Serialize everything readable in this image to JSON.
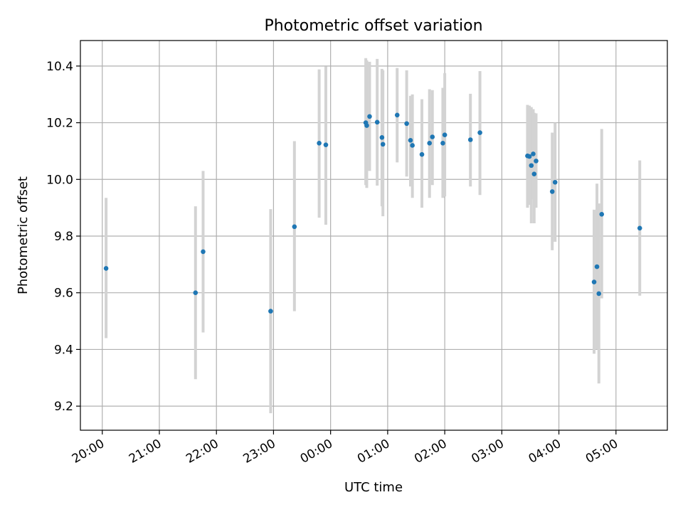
{
  "chart_data": {
    "type": "scatter",
    "title": "Photometric offset variation",
    "xlabel": "UTC time",
    "ylabel": "Photometric offset",
    "x_tick_labels": [
      "20:00",
      "21:00",
      "22:00",
      "23:00",
      "00:00",
      "01:00",
      "02:00",
      "03:00",
      "04:00",
      "05:00"
    ],
    "y_tick_labels": [
      "9.2",
      "9.4",
      "9.6",
      "9.8",
      "10.0",
      "10.2",
      "10.4"
    ],
    "y_ticks": [
      9.2,
      9.4,
      9.6,
      9.8,
      10.0,
      10.2,
      10.4
    ],
    "xlim": [
      "19:37",
      "05:54"
    ],
    "ylim": [
      9.115,
      10.49
    ],
    "grid": true,
    "marker_color": "#1f77b4",
    "errorbar_color": "#d3d3d3",
    "points": [
      {
        "time": "20:04",
        "y": 9.686,
        "ylo": 9.44,
        "yhi": 9.935
      },
      {
        "time": "21:38",
        "y": 9.6,
        "ylo": 9.295,
        "yhi": 9.905
      },
      {
        "time": "21:46",
        "y": 9.745,
        "ylo": 9.46,
        "yhi": 10.03
      },
      {
        "time": "22:57",
        "y": 9.535,
        "ylo": 9.175,
        "yhi": 9.895
      },
      {
        "time": "23:22",
        "y": 9.833,
        "ylo": 9.535,
        "yhi": 10.135
      },
      {
        "time": "23:48",
        "y": 10.128,
        "ylo": 9.865,
        "yhi": 10.388
      },
      {
        "time": "23:55",
        "y": 10.122,
        "ylo": 9.84,
        "yhi": 10.398
      },
      {
        "time": "00:37",
        "y": 10.2,
        "ylo": 9.98,
        "yhi": 10.428
      },
      {
        "time": "00:38",
        "y": 10.19,
        "ylo": 9.97,
        "yhi": 10.42
      },
      {
        "time": "00:41",
        "y": 10.222,
        "ylo": 10.03,
        "yhi": 10.415
      },
      {
        "time": "00:49",
        "y": 10.202,
        "ylo": 9.978,
        "yhi": 10.425
      },
      {
        "time": "00:54",
        "y": 10.148,
        "ylo": 9.905,
        "yhi": 10.39
      },
      {
        "time": "00:55",
        "y": 10.124,
        "ylo": 9.87,
        "yhi": 10.385
      },
      {
        "time": "01:10",
        "y": 10.227,
        "ylo": 10.06,
        "yhi": 10.393
      },
      {
        "time": "01:20",
        "y": 10.197,
        "ylo": 10.01,
        "yhi": 10.385
      },
      {
        "time": "01:24",
        "y": 10.138,
        "ylo": 9.975,
        "yhi": 10.295
      },
      {
        "time": "01:26",
        "y": 10.12,
        "ylo": 9.935,
        "yhi": 10.3
      },
      {
        "time": "01:36",
        "y": 10.088,
        "ylo": 9.9,
        "yhi": 10.283
      },
      {
        "time": "01:44",
        "y": 10.128,
        "ylo": 9.935,
        "yhi": 10.318
      },
      {
        "time": "01:47",
        "y": 10.15,
        "ylo": 9.98,
        "yhi": 10.315
      },
      {
        "time": "01:58",
        "y": 10.128,
        "ylo": 9.935,
        "yhi": 10.323
      },
      {
        "time": "02:00",
        "y": 10.157,
        "ylo": 9.94,
        "yhi": 10.375
      },
      {
        "time": "02:27",
        "y": 10.14,
        "ylo": 9.975,
        "yhi": 10.302
      },
      {
        "time": "02:37",
        "y": 10.165,
        "ylo": 9.945,
        "yhi": 10.382
      },
      {
        "time": "03:27",
        "y": 10.083,
        "ylo": 9.9,
        "yhi": 10.263
      },
      {
        "time": "03:29",
        "y": 10.081,
        "ylo": 9.91,
        "yhi": 10.26
      },
      {
        "time": "03:31",
        "y": 10.049,
        "ylo": 9.845,
        "yhi": 10.255
      },
      {
        "time": "03:33",
        "y": 10.09,
        "ylo": 9.93,
        "yhi": 10.248
      },
      {
        "time": "03:34",
        "y": 10.019,
        "ylo": 9.845,
        "yhi": 10.235
      },
      {
        "time": "03:36",
        "y": 10.065,
        "ylo": 9.9,
        "yhi": 10.233
      },
      {
        "time": "03:53",
        "y": 9.957,
        "ylo": 9.75,
        "yhi": 10.165
      },
      {
        "time": "03:56",
        "y": 9.99,
        "ylo": 9.78,
        "yhi": 10.2
      },
      {
        "time": "04:37",
        "y": 9.638,
        "ylo": 9.385,
        "yhi": 9.893
      },
      {
        "time": "04:40",
        "y": 9.692,
        "ylo": 9.4,
        "yhi": 9.985
      },
      {
        "time": "04:42",
        "y": 9.597,
        "ylo": 9.28,
        "yhi": 9.915
      },
      {
        "time": "04:45",
        "y": 9.877,
        "ylo": 9.58,
        "yhi": 10.178
      },
      {
        "time": "05:25",
        "y": 9.828,
        "ylo": 9.59,
        "yhi": 10.067
      }
    ]
  }
}
